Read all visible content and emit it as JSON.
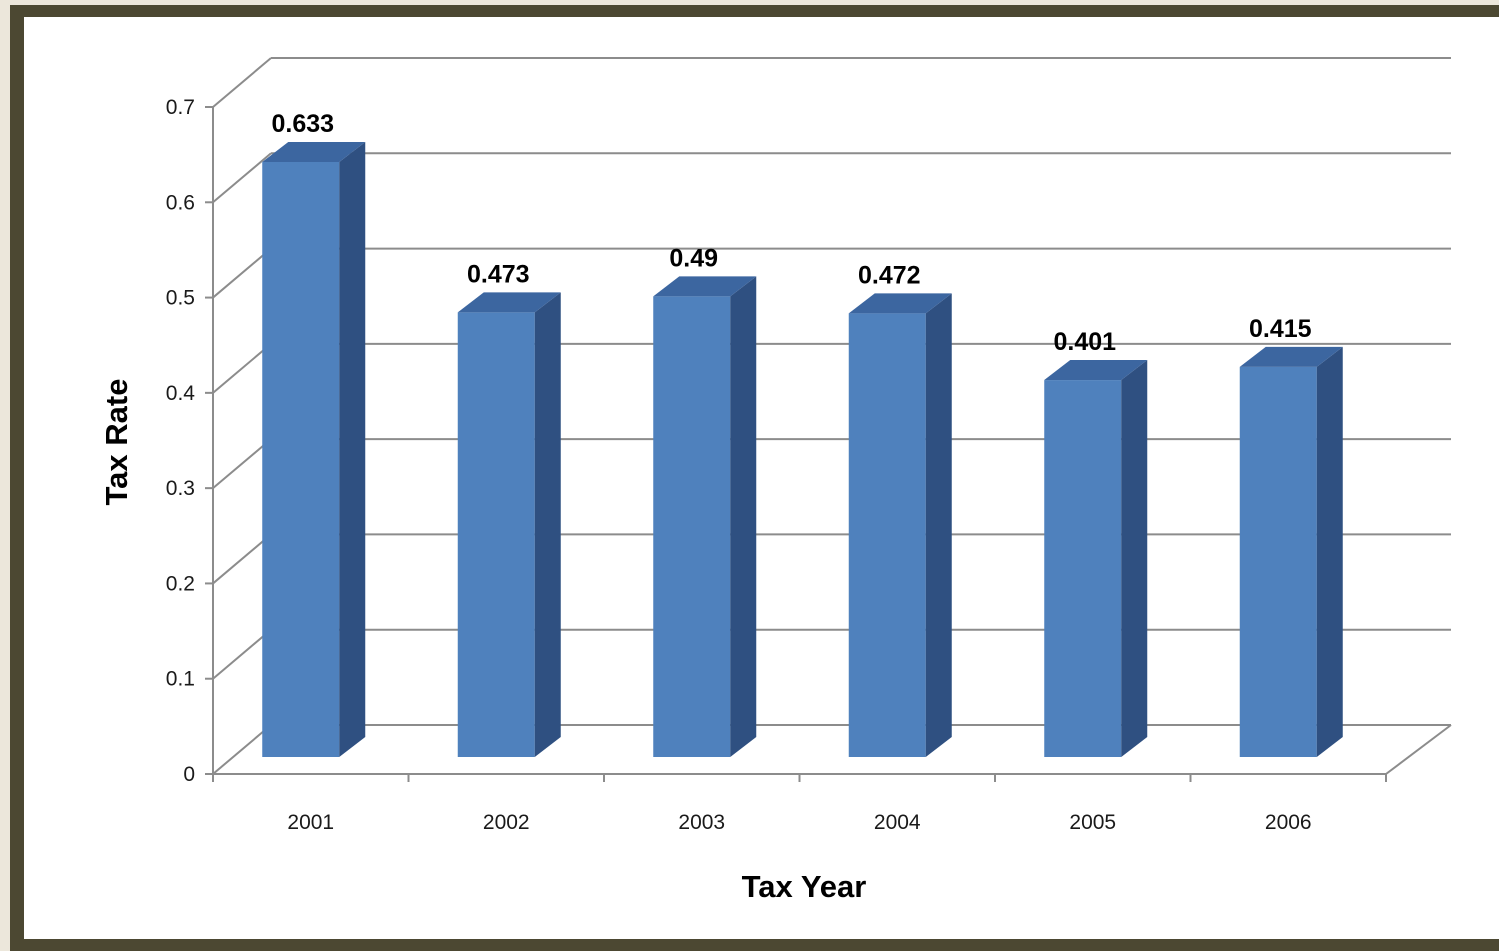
{
  "chart_data": {
    "type": "bar",
    "style": "3d-column",
    "title": "",
    "xlabel": "Tax Year",
    "ylabel": "Tax Rate",
    "categories": [
      "2001",
      "2002",
      "2003",
      "2004",
      "2005",
      "2006"
    ],
    "values": [
      0.633,
      0.473,
      0.49,
      0.472,
      0.401,
      0.415
    ],
    "data_labels": [
      "0.633",
      "0.473",
      "0.49",
      "0.472",
      "0.401",
      "0.415"
    ],
    "ylim": [
      0,
      0.7
    ],
    "yticks": [
      0,
      0.1,
      0.2,
      0.3,
      0.4,
      0.5,
      0.6,
      0.7
    ],
    "ytick_labels": [
      "0",
      "0.1",
      "0.2",
      "0.3",
      "0.4",
      "0.5",
      "0.6",
      "0.7"
    ],
    "grid": true,
    "legend": "none"
  },
  "colors": {
    "bar_front": "#4f81bd",
    "bar_side": "#2f5081",
    "bar_top": "#3c66a0",
    "gridline": "#8c8c8c",
    "frame": "#4c4832",
    "background": "#ffffff"
  }
}
